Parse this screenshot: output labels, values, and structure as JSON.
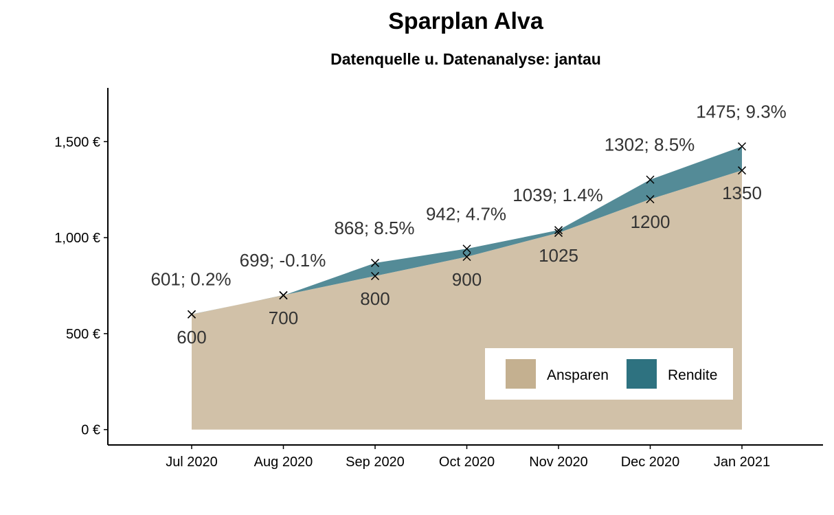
{
  "chart_data": {
    "type": "area",
    "title": "Sparplan Alva",
    "subtitle": "Datenquelle u. Datenanalyse: jantau",
    "xlabel": "",
    "ylabel": "",
    "x": [
      "Jul 2020",
      "Aug 2020",
      "Sep 2020",
      "Oct 2020",
      "Nov 2020",
      "Dec 2020",
      "Jan 2021"
    ],
    "ylim": [
      -80,
      1780
    ],
    "y_ticks": [
      {
        "value": 0,
        "label": "0 €"
      },
      {
        "value": 500,
        "label": "500 €"
      },
      {
        "value": 1000,
        "label": "1,000 €"
      },
      {
        "value": 1500,
        "label": "1,500 €"
      }
    ],
    "series": [
      {
        "name": "Ansparen",
        "color": "#c4b090",
        "values": [
          600,
          700,
          800,
          900,
          1025,
          1200,
          1350
        ]
      },
      {
        "name": "Rendite",
        "color": "#2e7280",
        "values": [
          601,
          699,
          868,
          942,
          1039,
          1302,
          1475
        ]
      }
    ],
    "annotations": {
      "invested_labels": [
        "600",
        "700",
        "800",
        "900",
        "1025",
        "1200",
        "1350"
      ],
      "value_labels": [
        "601; 0.2%",
        "699; -0.1%",
        "868; 8.5%",
        "942; 4.7%",
        "1039; 1.4%",
        "1302; 8.5%",
        "1475; 9.3%"
      ]
    },
    "legend": {
      "position": "bottom-right",
      "entries": [
        "Ansparen",
        "Rendite"
      ]
    },
    "grid": false
  }
}
